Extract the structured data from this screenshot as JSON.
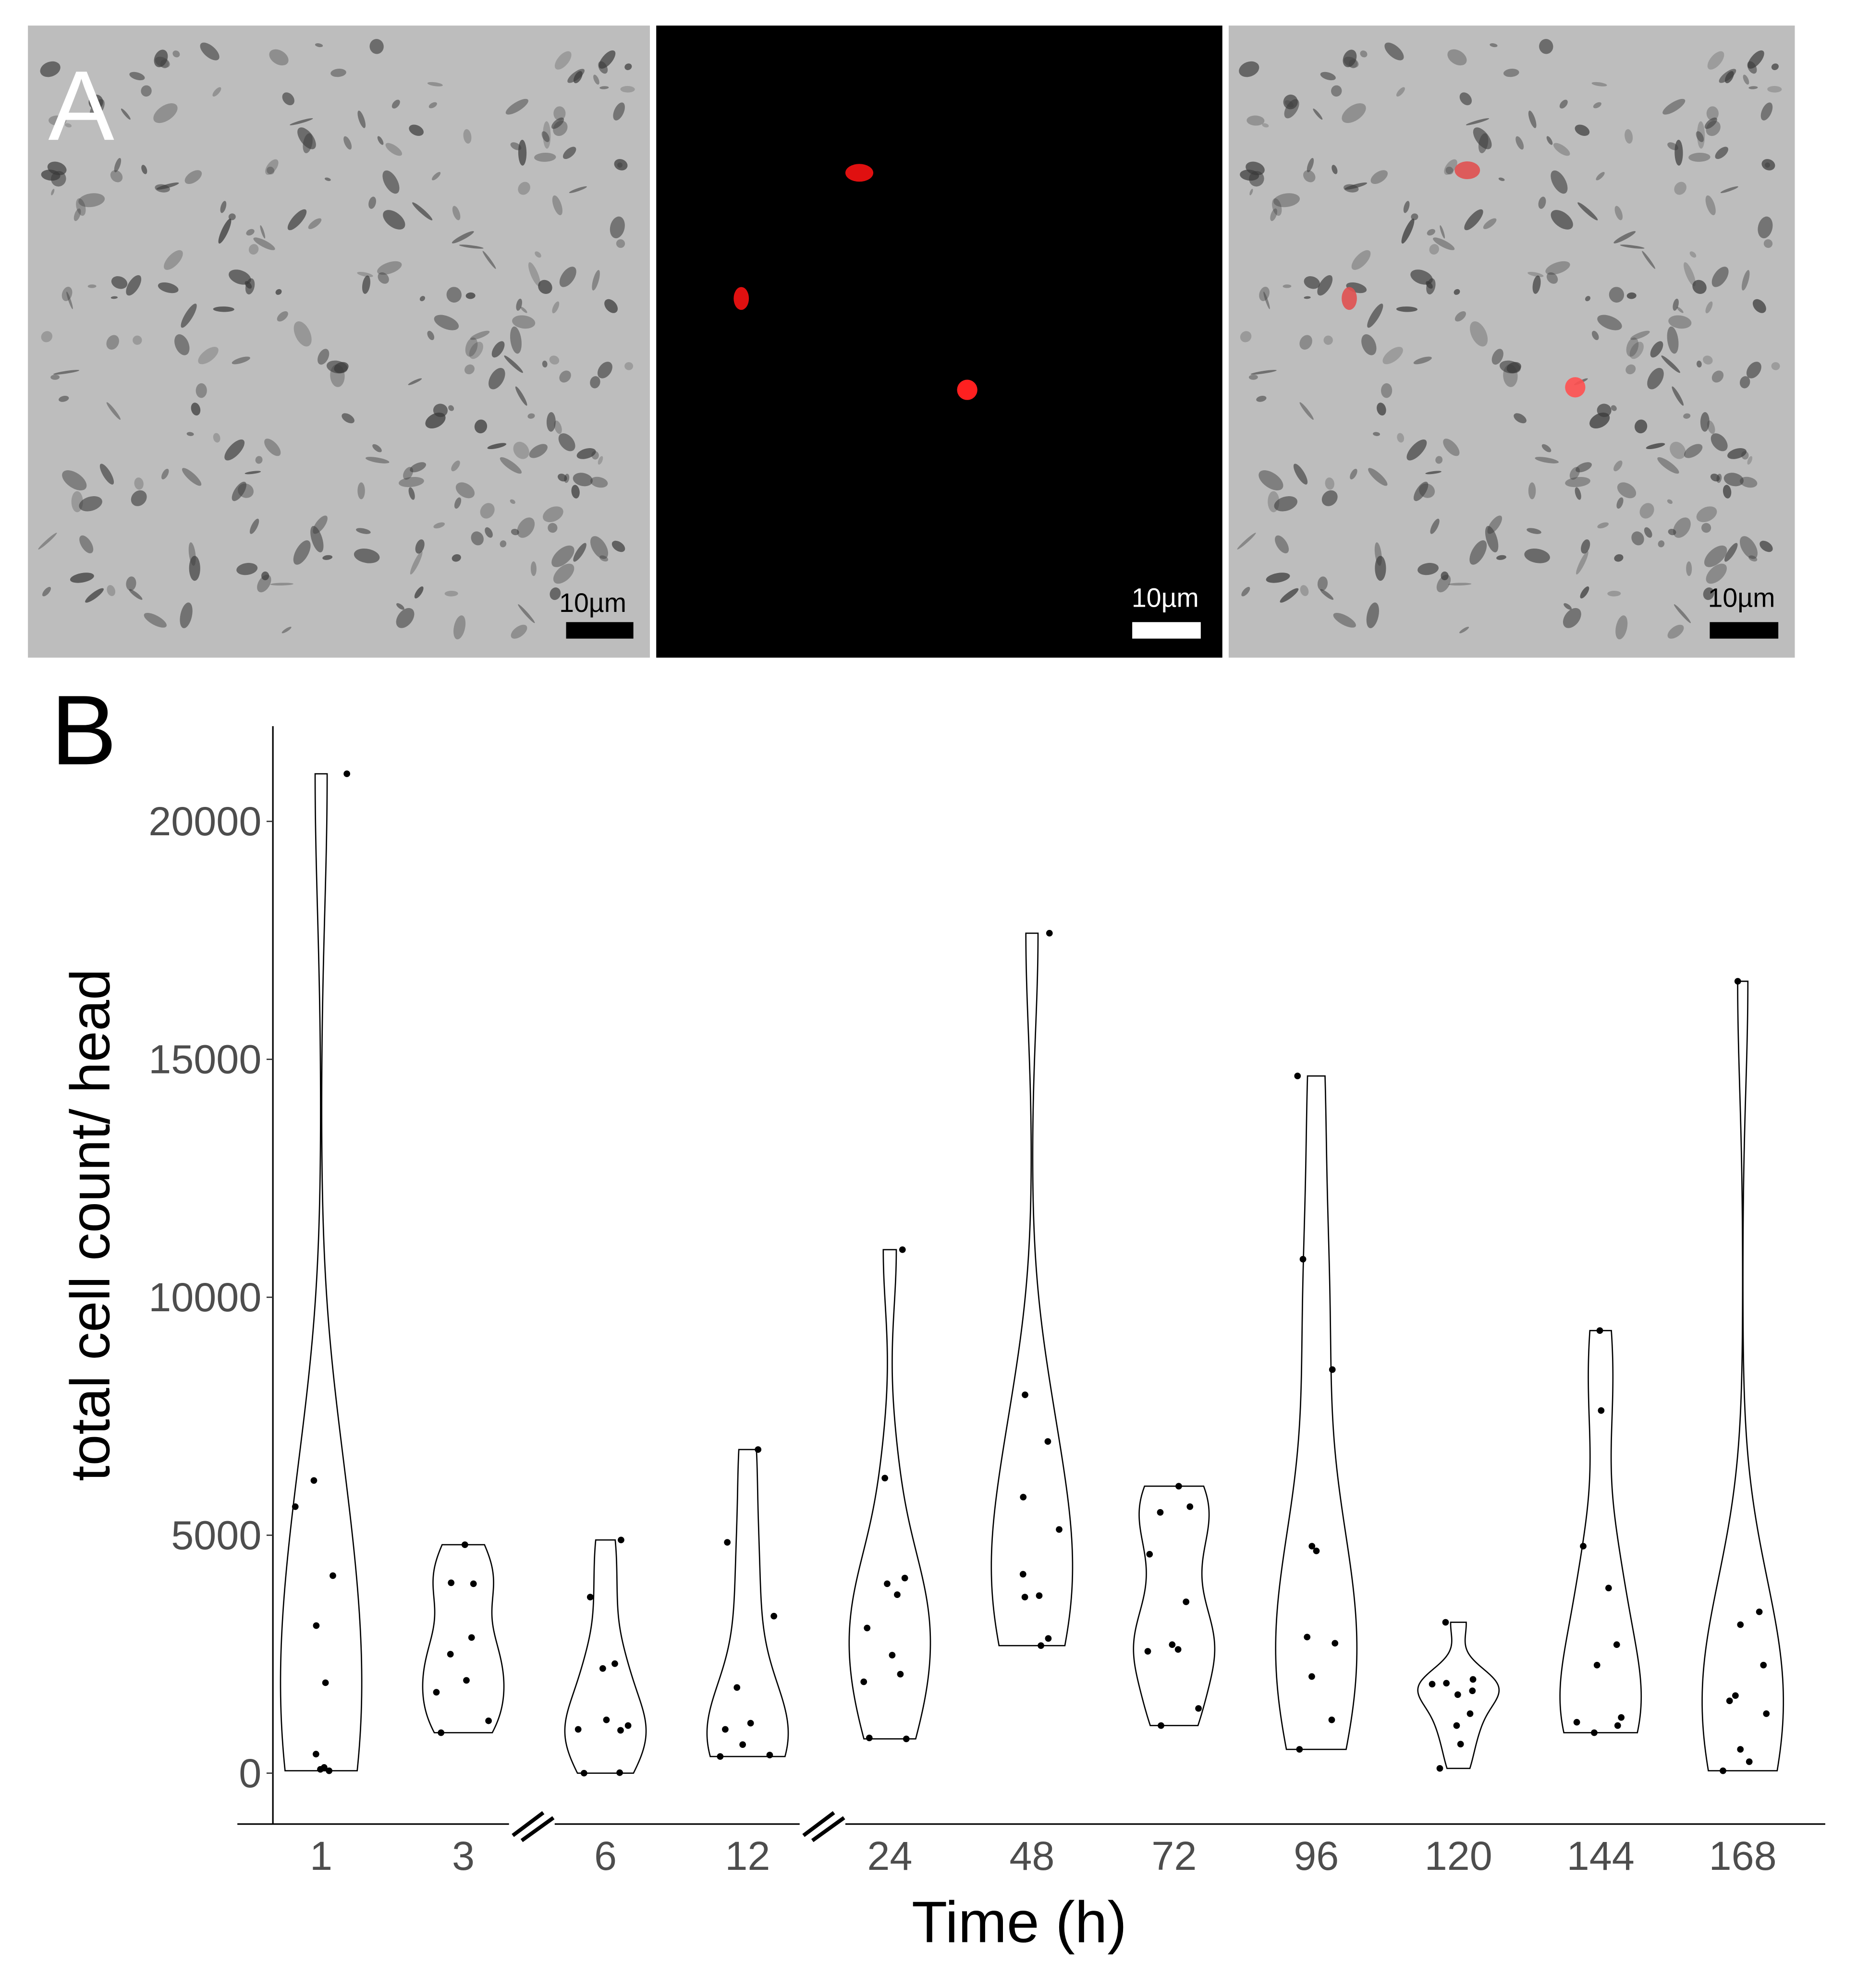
{
  "panel_a": {
    "label": "A",
    "scale_bars": [
      "10µm",
      "10µm",
      "10µm"
    ]
  },
  "panel_b_label": "B",
  "chart_data": {
    "type": "violin",
    "x_label": "Time (h)",
    "y_label": "total cell count/ head",
    "categories": [
      "1",
      "3",
      "6",
      "12",
      "24",
      "48",
      "72",
      "96",
      "120",
      "144",
      "168"
    ],
    "series": [
      {
        "values": [
          21000,
          6150,
          5600,
          4150,
          3100,
          1900,
          400,
          120,
          80,
          50
        ]
      },
      {
        "values": [
          4800,
          4000,
          3980,
          2850,
          2500,
          1950,
          1700,
          1100,
          850
        ]
      },
      {
        "values": [
          4900,
          3700,
          2300,
          2200,
          1120,
          1000,
          920,
          900,
          0,
          10
        ]
      },
      {
        "values": [
          6800,
          4850,
          3300,
          1800,
          1050,
          920,
          600,
          380,
          350
        ]
      },
      {
        "values": [
          11000,
          6200,
          4100,
          3980,
          3750,
          3050,
          2480,
          2080,
          1920,
          720,
          740
        ]
      },
      {
        "values": [
          17650,
          7950,
          6970,
          5800,
          5120,
          4180,
          3730,
          3700,
          2830,
          2680
        ]
      },
      {
        "values": [
          6030,
          5480,
          5600,
          4600,
          3600,
          2700,
          2600,
          2560,
          1360,
          1000
        ]
      },
      {
        "values": [
          14650,
          10800,
          8480,
          4770,
          4670,
          2860,
          2730,
          2030,
          1120,
          500
        ]
      },
      {
        "values": [
          3170,
          1970,
          1890,
          1870,
          1730,
          1650,
          1250,
          1000,
          610,
          100
        ]
      },
      {
        "values": [
          9300,
          7620,
          4770,
          3890,
          2700,
          2270,
          1170,
          1070,
          1000,
          850
        ]
      },
      {
        "values": [
          16640,
          3390,
          3120,
          2270,
          1630,
          1520,
          1250,
          500,
          240,
          50
        ]
      }
    ],
    "ylim": [
      -1070,
      22000
    ],
    "yticks": [
      0,
      5000,
      10000,
      15000,
      20000
    ]
  }
}
